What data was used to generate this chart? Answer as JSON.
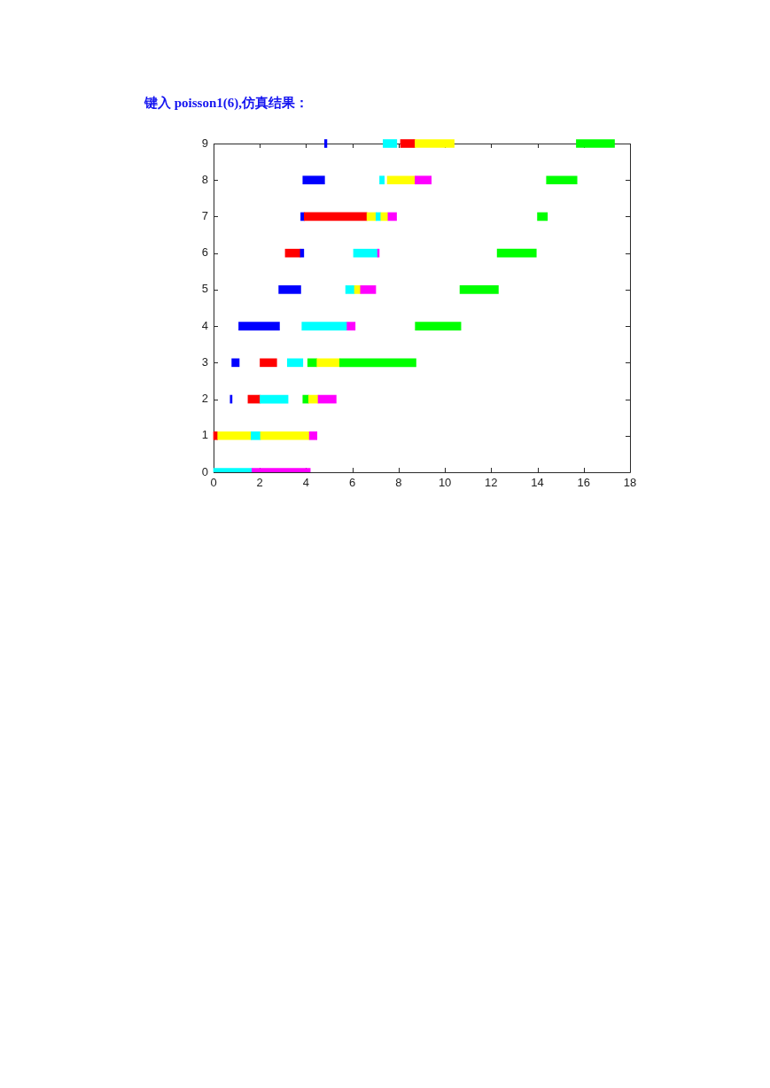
{
  "chart_data": {
    "type": "bar",
    "orientation": "horizontal",
    "title": "键入 poisson1(6),仿真结果：",
    "grid": false,
    "legend": false,
    "categories": [
      "9",
      "8",
      "7",
      "6",
      "5",
      "4",
      "3",
      "2",
      "1",
      "0"
    ],
    "xlim": [
      0,
      18
    ],
    "xticks": [
      0,
      2,
      4,
      6,
      8,
      10,
      12,
      14,
      16,
      18
    ],
    "series": [
      {
        "base": [
          4.8,
          3.86,
          3.77,
          3.1,
          2.82,
          1.09,
          0.79,
          0.72,
          0,
          0
        ],
        "values": [
          0.1,
          0.94,
          0.15,
          0.65,
          0.95,
          1.76,
          0.32,
          0.08,
          0.18,
          1.66
        ],
        "colors": [
          "#0000ff",
          "#0000ff",
          "#0000ff",
          "#ff0000",
          "#0000ff",
          "#0000ff",
          "#0000ff",
          "#0000ff",
          "#ff0000",
          "#00ffff"
        ]
      },
      {
        "base": [
          7.33,
          7.18,
          3.92,
          3.75,
          5.71,
          3.82,
          2.01,
          1.49,
          0.18,
          1.66
        ],
        "values": [
          0.59,
          0.2,
          2.71,
          0.15,
          0.38,
          1.95,
          0.72,
          0.52,
          1.44,
          2.52
        ],
        "colors": [
          "#00ffff",
          "#00ffff",
          "#ff0000",
          "#0000ff",
          "#00ffff",
          "#00ffff",
          "#ff0000",
          "#ff0000",
          "#ffff00",
          "#ff00ff"
        ]
      },
      {
        "base": [
          8.08,
          7.51,
          6.63,
          6.05,
          6.09,
          5.77,
          3.19,
          2.01,
          1.62,
          null
        ],
        "values": [
          0.63,
          1.2,
          0.39,
          1.04,
          0.26,
          0.35,
          0.67,
          1.21,
          0.41,
          null
        ],
        "colors": [
          "#ff0000",
          "#ffff00",
          "#ffff00",
          "#00ffff",
          "#ffff00",
          "#ff00ff",
          "#00ffff",
          "#00ffff",
          "#00ffff",
          null
        ]
      },
      {
        "base": [
          8.71,
          8.71,
          7.02,
          7.09,
          6.35,
          8.72,
          4.07,
          3.86,
          2.03,
          null
        ],
        "values": [
          1.69,
          0.7,
          0.21,
          0.07,
          0.66,
          1.97,
          0.4,
          0.25,
          2.11,
          null
        ],
        "colors": [
          "#ffff00",
          "#ff00ff",
          "#00ffff",
          "#ff00ff",
          "#ff00ff",
          "#00ff00",
          "#00ff00",
          "#00ff00",
          "#ffff00",
          null
        ]
      },
      {
        "base": [
          15.68,
          14.39,
          7.23,
          12.26,
          10.65,
          null,
          4.47,
          4.11,
          4.14,
          null
        ],
        "values": [
          1.65,
          1.32,
          0.31,
          1.69,
          1.66,
          null,
          0.98,
          0.41,
          0.33,
          null
        ],
        "colors": [
          "#00ff00",
          "#00ff00",
          "#ffff00",
          "#00ff00",
          "#00ff00",
          null,
          "#ffff00",
          "#ffff00",
          "#ff00ff",
          null
        ]
      },
      {
        "base": [
          null,
          null,
          7.54,
          null,
          null,
          null,
          5.45,
          4.52,
          null,
          null
        ],
        "values": [
          null,
          null,
          0.37,
          null,
          null,
          null,
          3.3,
          0.78,
          null,
          null
        ],
        "colors": [
          null,
          null,
          "#ff00ff",
          null,
          null,
          null,
          "#00ff00",
          "#ff00ff",
          null,
          null
        ]
      },
      {
        "base": [
          null,
          null,
          14.0,
          null,
          null,
          null,
          null,
          null,
          null,
          null
        ],
        "values": [
          null,
          null,
          0.43,
          null,
          null,
          null,
          null,
          null,
          null,
          null
        ],
        "colors": [
          null,
          null,
          "#00ff00",
          null,
          null,
          null,
          null,
          null,
          null,
          null
        ]
      }
    ]
  }
}
